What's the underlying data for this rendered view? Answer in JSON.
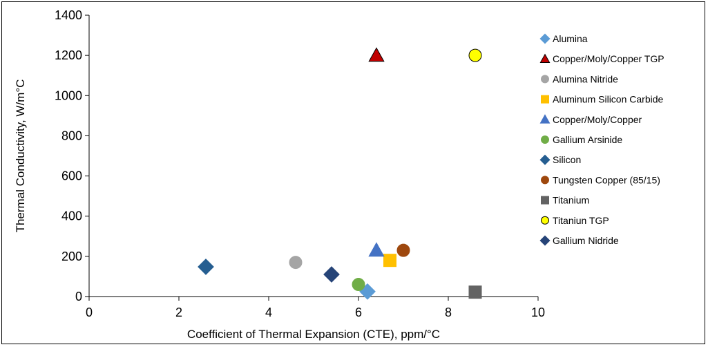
{
  "chart_data": {
    "type": "scatter",
    "title": "",
    "xlabel": "Coefficient of Thermal Expansion (CTE), ppm/°C",
    "ylabel": "Thermal Conductivity, W/m°C",
    "xlim": [
      0,
      10
    ],
    "ylim": [
      0,
      1400
    ],
    "x_ticks": [
      "0",
      "2",
      "4",
      "6",
      "8",
      "10"
    ],
    "y_ticks": [
      "0",
      "200",
      "400",
      "600",
      "800",
      "1000",
      "1200",
      "1400"
    ],
    "grid": false,
    "legend_position": "right",
    "series": [
      {
        "name": "Alumina",
        "marker": "diamond",
        "color": "#5B9BD5",
        "stroke": "#5B9BD5",
        "label_color": "#000000",
        "x": 6.2,
        "y": 25
      },
      {
        "name": "Copper/Moly/Copper TGP",
        "marker": "triangle",
        "color": "#C00000",
        "stroke": "#000000",
        "label_color": "#C00000",
        "x": 6.4,
        "y": 1200
      },
      {
        "name": "Alumina Nitride",
        "marker": "circle",
        "color": "#A5A5A5",
        "stroke": "#A5A5A5",
        "label_color": "#000000",
        "x": 4.6,
        "y": 170
      },
      {
        "name": "Aluminum Silicon Carbide",
        "marker": "square",
        "color": "#FFC000",
        "stroke": "#FFC000",
        "label_color": "#000000",
        "x": 6.7,
        "y": 180
      },
      {
        "name": "Copper/Moly/Copper",
        "marker": "triangle",
        "color": "#4472C4",
        "stroke": "#4472C4",
        "label_color": "#000000",
        "x": 6.4,
        "y": 230
      },
      {
        "name": "Gallium Arsinide",
        "marker": "circle",
        "color": "#70AD47",
        "stroke": "#70AD47",
        "label_color": "#000000",
        "x": 6.0,
        "y": 60
      },
      {
        "name": "Silicon",
        "marker": "diamond",
        "color": "#255E91",
        "stroke": "#255E91",
        "label_color": "#000000",
        "x": 2.6,
        "y": 148
      },
      {
        "name": "Tungsten Copper (85/15)",
        "marker": "circle",
        "color": "#9E480E",
        "stroke": "#9E480E",
        "label_color": "#000000",
        "x": 7.0,
        "y": 230
      },
      {
        "name": "Titanium",
        "marker": "square",
        "color": "#636363",
        "stroke": "#636363",
        "label_color": "#000000",
        "x": 8.6,
        "y": 22
      },
      {
        "name": "Titaniun TGP",
        "marker": "circle",
        "color": "#FFFF00",
        "stroke": "#000000",
        "label_color": "#C00000",
        "x": 8.6,
        "y": 1200
      },
      {
        "name": "Gallium Nidride",
        "marker": "diamond",
        "color": "#264478",
        "stroke": "#264478",
        "label_color": "#000000",
        "x": 5.4,
        "y": 110
      }
    ]
  }
}
